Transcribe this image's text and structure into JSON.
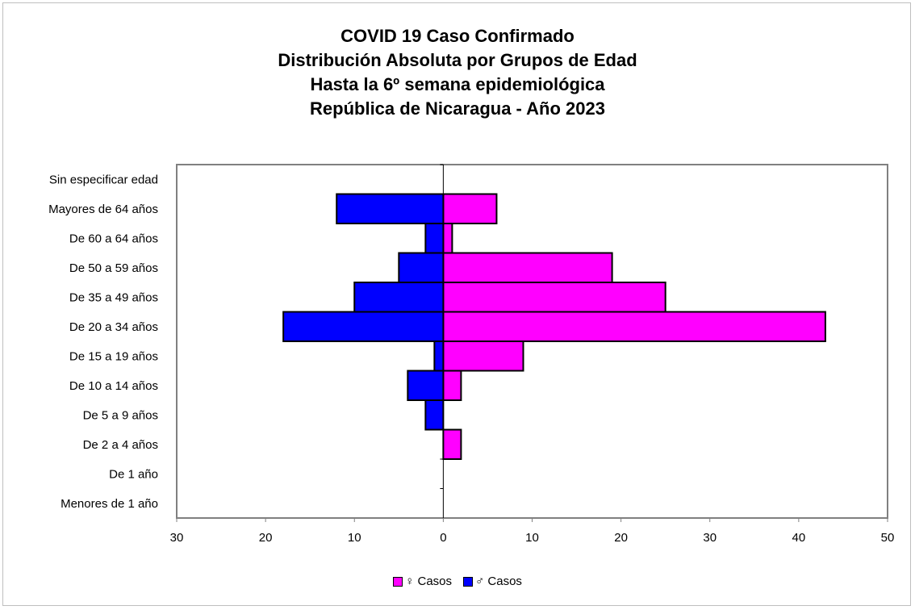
{
  "chart_data": {
    "type": "bar",
    "orientation": "horizontal",
    "title_lines": [
      "COVID 19 Caso Confirmado",
      "Distribución Absoluta por Grupos de Edad",
      "Hasta la 6º semana epidemiológica",
      "República de Nicaragua - Año 2023"
    ],
    "categories": [
      "Menores de 1 año",
      "De 1 año",
      "De 2 a 4 años",
      "De 5 a 9 años",
      "De 10 a 14 años",
      "De 15 a 19 años",
      "De 20 a 34 años",
      "De 35 a 49 años",
      "De 50 a 59 años",
      "De 60 a 64 años",
      "Mayores de 64 años",
      "Sin especificar edad"
    ],
    "series": [
      {
        "name": "♀ Casos",
        "color": "#ff00ff",
        "values": [
          0,
          0,
          2,
          0,
          2,
          9,
          43,
          25,
          19,
          1,
          6,
          0
        ]
      },
      {
        "name": "♂ Casos",
        "color": "#0000ff",
        "values": [
          0,
          0,
          0,
          2,
          4,
          1,
          18,
          10,
          5,
          2,
          12,
          0
        ]
      }
    ],
    "xlim": [
      -30,
      50
    ],
    "x_ticks": [
      -30,
      -20,
      -10,
      0,
      10,
      20,
      30,
      40,
      50
    ],
    "x_tick_labels": [
      "30",
      "20",
      "10",
      "0",
      "10",
      "20",
      "30",
      "40",
      "50"
    ],
    "legend_position": "bottom",
    "grid": false
  }
}
